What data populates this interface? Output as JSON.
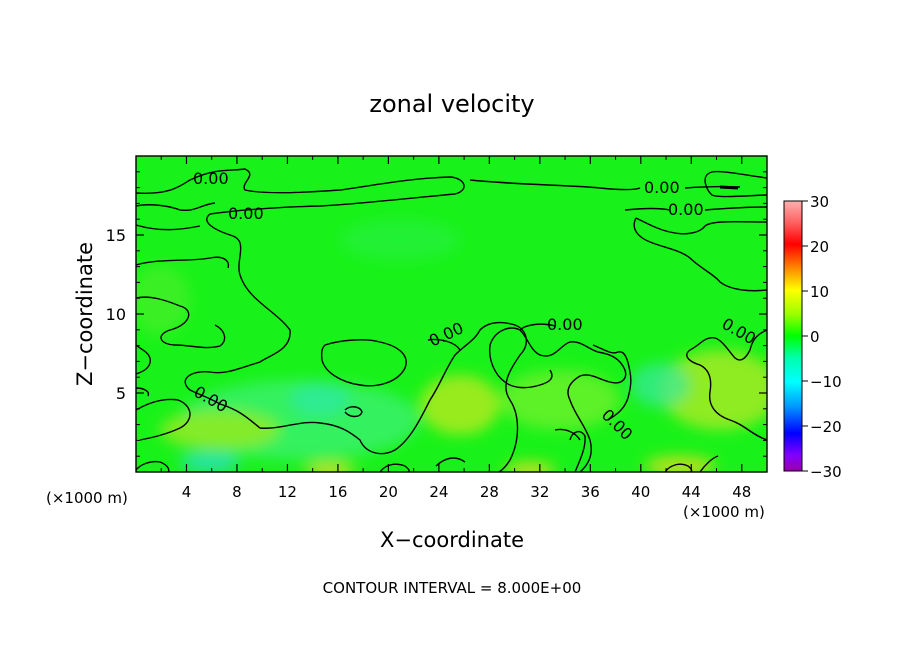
{
  "chart_data": {
    "type": "heatmap",
    "title": "zonal velocity",
    "xlabel": "X−coordinate",
    "ylabel": "Z−coordinate",
    "x_unit_label_left": "(×1000 m)",
    "x_unit_label_right": "(×1000 m)",
    "xlim": [
      0,
      50
    ],
    "ylim": [
      0,
      20
    ],
    "x_ticks": [
      4,
      8,
      12,
      16,
      20,
      24,
      28,
      32,
      36,
      40,
      44,
      48
    ],
    "x_tick_labels": [
      "4",
      "8",
      "12",
      "16",
      "20",
      "24",
      "28",
      "32",
      "36",
      "40",
      "44",
      "48"
    ],
    "y_ticks": [
      5,
      10,
      15
    ],
    "y_tick_labels": [
      "5",
      "10",
      "15"
    ],
    "colorbar": {
      "range": [
        -30,
        30
      ],
      "ticks": [
        30,
        20,
        10,
        0,
        -10,
        -20,
        -30
      ],
      "tick_labels": [
        "30",
        "20",
        "10",
        "0",
        "−10",
        "−20",
        "−30"
      ],
      "colors": [
        "#ffb0b0",
        "#ff0000",
        "#ff9900",
        "#ffff00",
        "#9aff00",
        "#00ff00",
        "#00ffaa",
        "#00ffff",
        "#0099ff",
        "#0000ff",
        "#8000ff",
        "#9900aa"
      ]
    },
    "contour_interval_text": "CONTOUR INTERVAL = 8.000E+00",
    "contour_labels": [
      "0.00",
      "0.00",
      "0.00",
      "0.00",
      "0.00",
      "0.00",
      "0.00",
      "0.00",
      "0.00"
    ],
    "field_note": "mostly 0 (green) with slightly positive (yellow-green) lower region and small negative (cyan) patches near z = 4"
  }
}
